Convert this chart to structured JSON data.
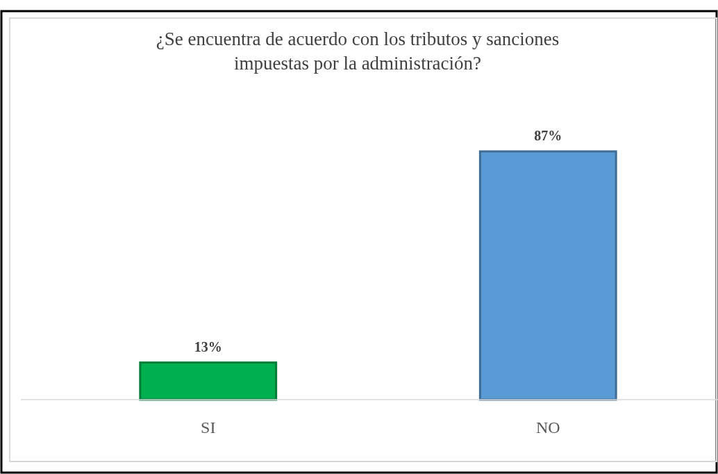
{
  "chart_data": {
    "type": "bar",
    "title": "¿Se encuentra de acuerdo con los tributos y sanciones impuestas por la administración?",
    "categories": [
      "SI",
      "NO"
    ],
    "values": [
      13,
      87
    ],
    "colors": [
      "#00b050",
      "#5b9bd5"
    ],
    "value_labels": [
      "13%",
      "87%"
    ]
  }
}
